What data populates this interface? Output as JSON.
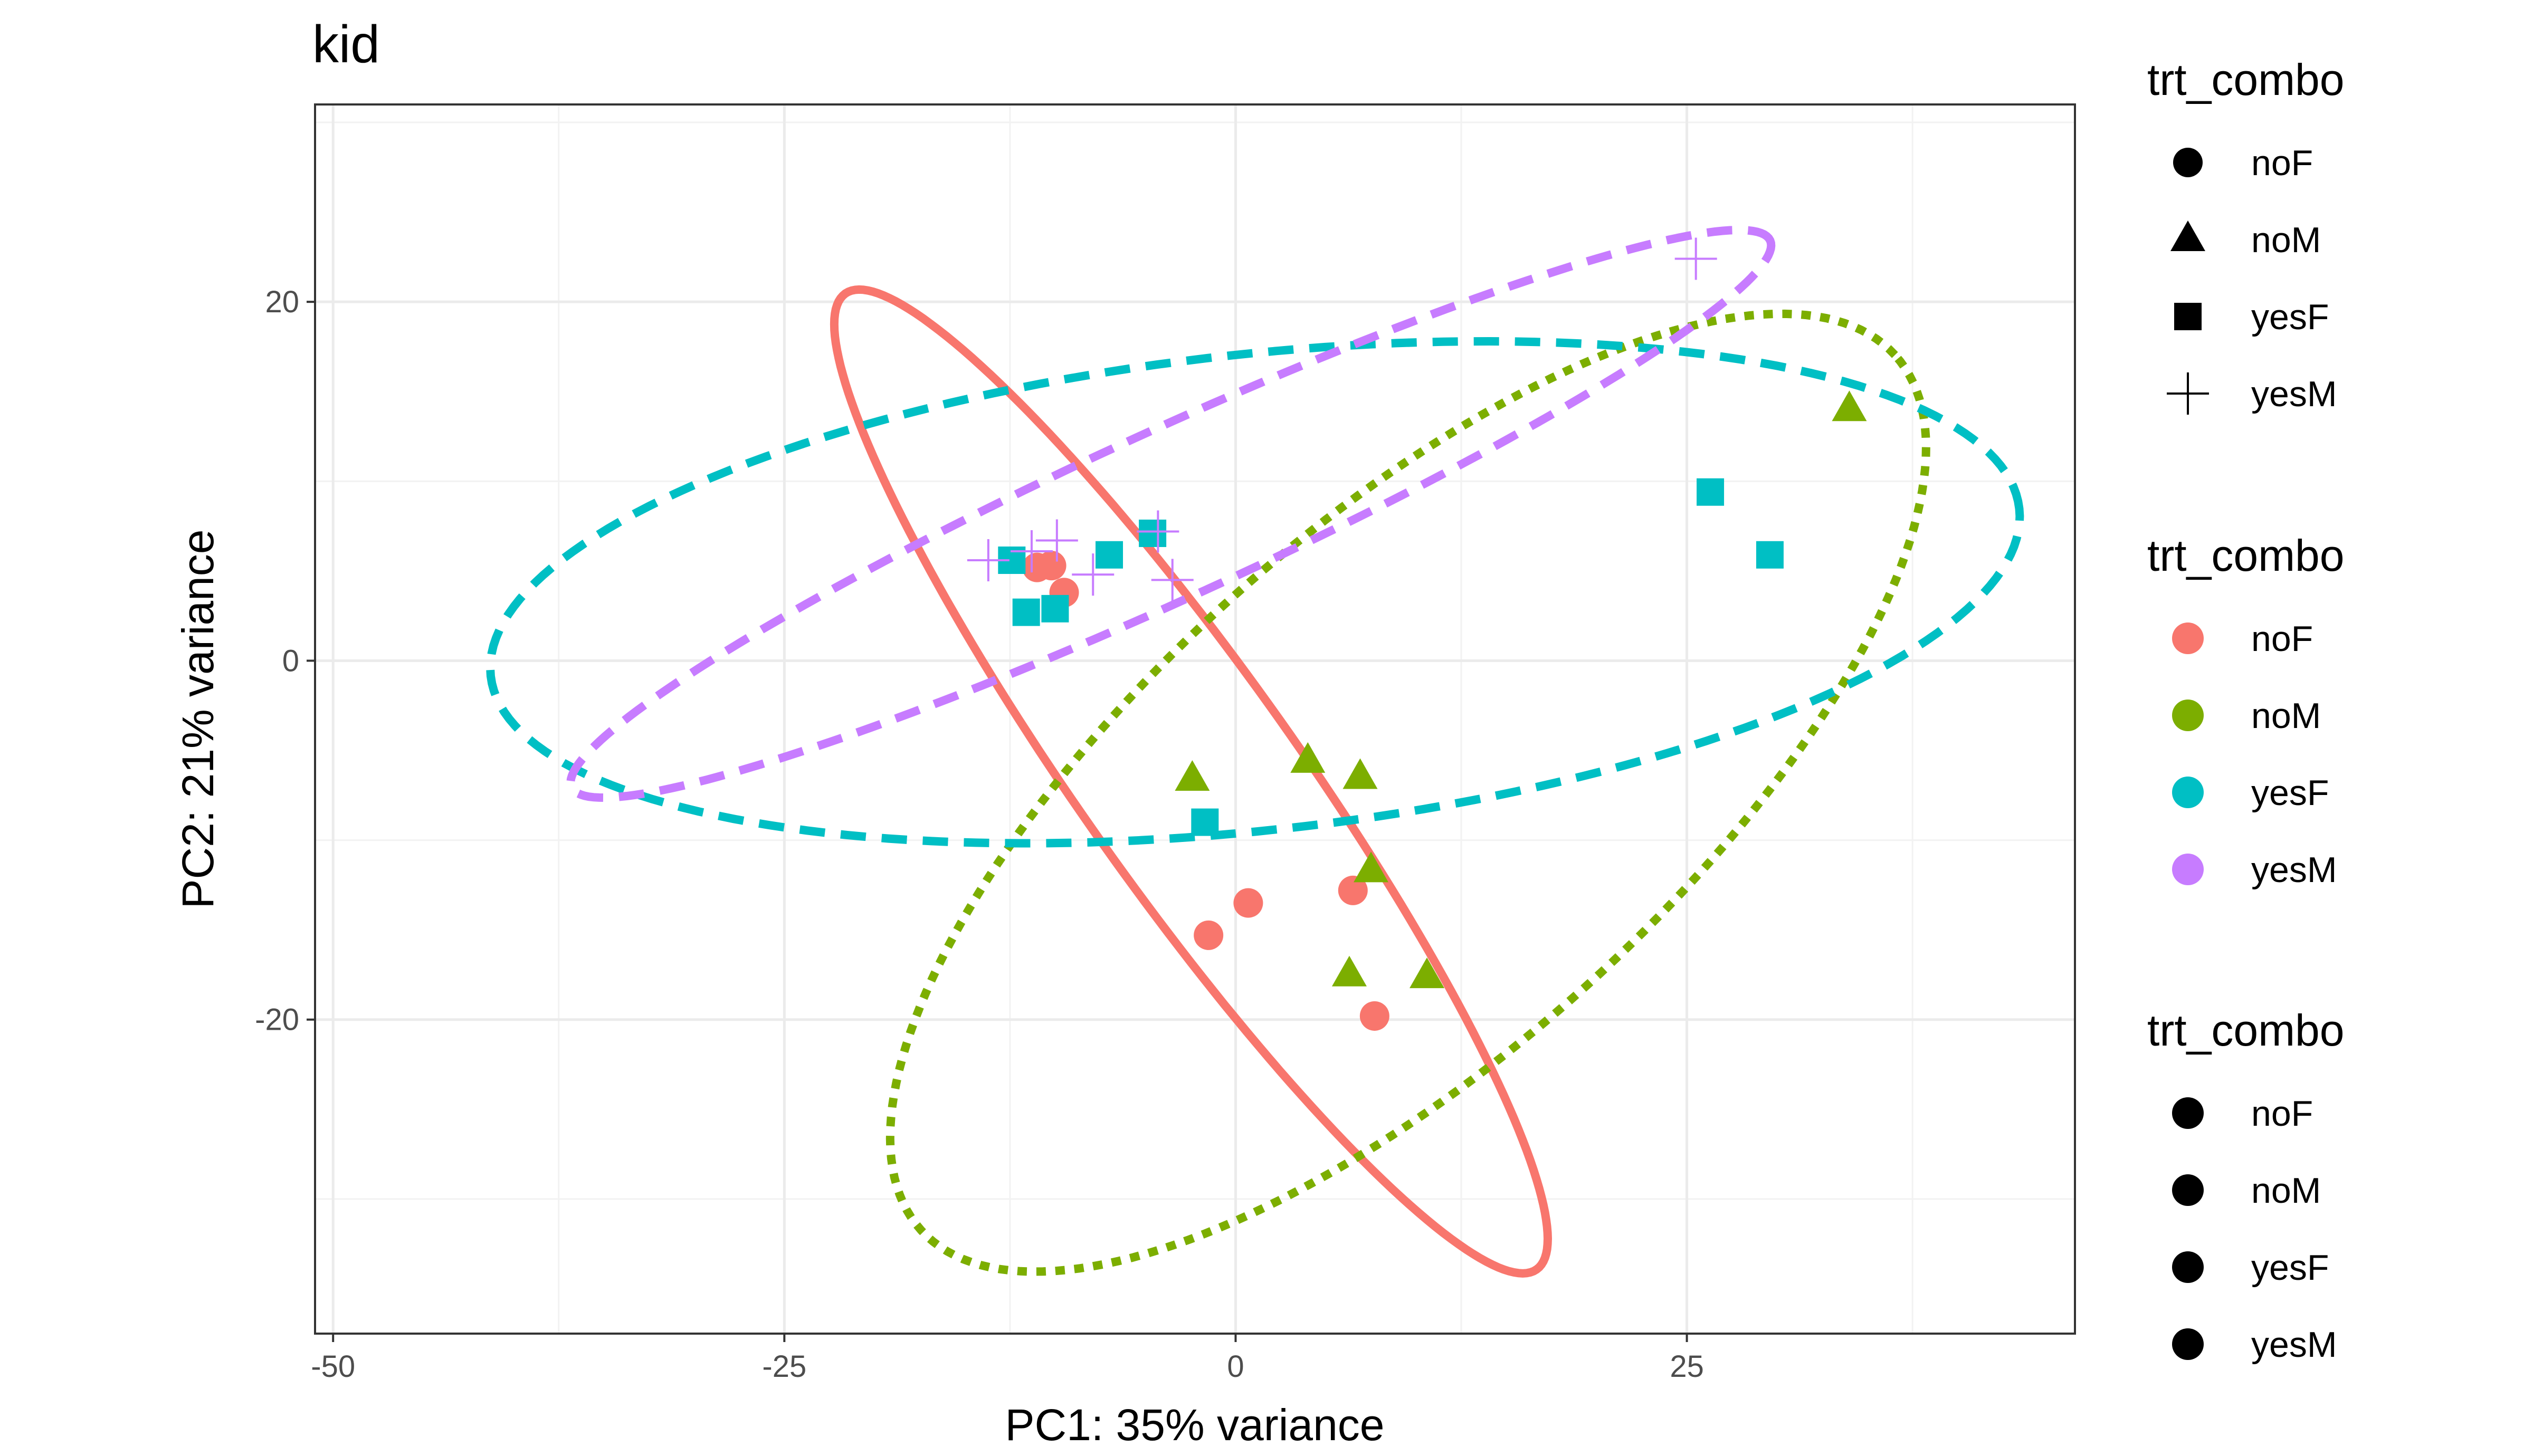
{
  "chart_data": {
    "type": "scatter",
    "title": "kid",
    "xlabel": "PC1: 35% variance",
    "ylabel": "PC2: 21% variance",
    "xlim": [
      -51,
      46.5
    ],
    "ylim": [
      -37.5,
      31
    ],
    "xticks": [
      -50,
      -25,
      0,
      25
    ],
    "xtick_labels": [
      "-50",
      "-25",
      "0",
      "25"
    ],
    "yticks": [
      -20,
      0,
      20
    ],
    "ytick_labels": [
      "-20",
      "0",
      "20"
    ],
    "grid": true,
    "legend_position": "right",
    "colors": {
      "noF": "#F8766D",
      "noM": "#7CAE00",
      "yesF": "#00BFC4",
      "yesM": "#C77CFF"
    },
    "shapes": {
      "noF": "circle",
      "noM": "triangle",
      "yesF": "square",
      "yesM": "plus"
    },
    "series": [
      {
        "name": "noF",
        "points": [
          [
            -11,
            5.2
          ],
          [
            -10.2,
            5.3
          ],
          [
            -9.5,
            3.8
          ],
          [
            -1.5,
            -15.3
          ],
          [
            0.7,
            -13.5
          ],
          [
            6.5,
            -12.8
          ],
          [
            7.7,
            -19.8
          ]
        ]
      },
      {
        "name": "noM",
        "points": [
          [
            -2.4,
            -6.6
          ],
          [
            4,
            -5.6
          ],
          [
            6.9,
            -6.5
          ],
          [
            7.5,
            -11.7
          ],
          [
            6.3,
            -17.5
          ],
          [
            10.6,
            -17.6
          ],
          [
            34,
            14
          ]
        ]
      },
      {
        "name": "yesF",
        "points": [
          [
            -12.4,
            5.6
          ],
          [
            -11.6,
            2.7
          ],
          [
            -10,
            2.9
          ],
          [
            -7,
            5.9
          ],
          [
            -4.6,
            7.1
          ],
          [
            -1.7,
            -9
          ],
          [
            26.3,
            9.4
          ],
          [
            29.6,
            5.9
          ]
        ]
      },
      {
        "name": "yesM",
        "points": [
          [
            -13.7,
            5.6
          ],
          [
            -11.3,
            6.1
          ],
          [
            -9.9,
            6.7
          ],
          [
            -7.9,
            4.8
          ],
          [
            -4.3,
            7.2
          ],
          [
            -3.5,
            4.5
          ],
          [
            25.5,
            22.4
          ]
        ]
      }
    ],
    "ellipses": [
      {
        "name": "noF",
        "style": "solid"
      },
      {
        "name": "noM",
        "style": "dotted"
      },
      {
        "name": "yesF",
        "style": "dashed"
      },
      {
        "name": "yesM",
        "style": "dashed"
      }
    ],
    "legends": [
      {
        "title": "trt_combo",
        "kind": "shape",
        "items": [
          "noF",
          "noM",
          "yesF",
          "yesM"
        ]
      },
      {
        "title": "trt_combo",
        "kind": "color",
        "items": [
          "noF",
          "noM",
          "yesF",
          "yesM"
        ]
      },
      {
        "title": "trt_combo",
        "kind": "linetype",
        "items": [
          "noF",
          "noM",
          "yesF",
          "yesM"
        ]
      }
    ]
  }
}
